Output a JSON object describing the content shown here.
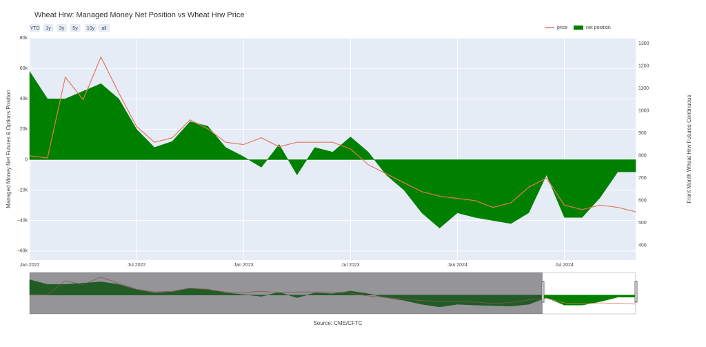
{
  "chart_data": {
    "type": "area-line",
    "title": "Wheat Hrw: Managed Money Net Position vs Wheat Hrw Price",
    "buttons": [
      "YTD",
      "1y",
      "3y",
      "5y",
      "10y",
      "all"
    ],
    "y_label": "Managed Money Net Futures & Options Position",
    "y2_label": "Front Month Wheat Hrw Futures Continuous",
    "source": "Source: CME/CFTC",
    "x": [
      "2022-01",
      "2022-02",
      "2022-03",
      "2022-04",
      "2022-05",
      "2022-06",
      "2022-07",
      "2022-08",
      "2022-09",
      "2022-10",
      "2022-11",
      "2022-12",
      "2023-01",
      "2023-02",
      "2023-03",
      "2023-04",
      "2023-05",
      "2023-06",
      "2023-07",
      "2023-08",
      "2023-09",
      "2023-10",
      "2023-11",
      "2023-12",
      "2024-01",
      "2024-02",
      "2024-03",
      "2024-04",
      "2024-05",
      "2024-06",
      "2024-07",
      "2024-08",
      "2024-09",
      "2024-10",
      "2024-11"
    ],
    "xlim": [
      "2022-01",
      "2024-11"
    ],
    "xticks": [
      {
        "value": "2022-01",
        "label": "Jan 2022"
      },
      {
        "value": "2022-07",
        "label": "Jul 2022"
      },
      {
        "value": "2023-01",
        "label": "Jan 2023"
      },
      {
        "value": "2023-07",
        "label": "Jul 2023"
      },
      {
        "value": "2024-01",
        "label": "Jan 2024"
      },
      {
        "value": "2024-07",
        "label": "Jul 2024"
      }
    ],
    "ylim": [
      -66000,
      80000
    ],
    "yticks": [
      {
        "value": -60000,
        "label": "−60k"
      },
      {
        "value": -40000,
        "label": "−40k"
      },
      {
        "value": -20000,
        "label": "−20k"
      },
      0,
      {
        "value": 20000,
        "label": "20k"
      },
      {
        "value": 40000,
        "label": "40k"
      },
      {
        "value": 60000,
        "label": "60k"
      },
      {
        "value": 80000,
        "label": "80k"
      }
    ],
    "y2lim": [
      335,
      1325
    ],
    "y2ticks": [
      400,
      500,
      600,
      700,
      800,
      900,
      1000,
      1100,
      1200,
      1300
    ],
    "grid": true,
    "legend": "top-right",
    "series": [
      {
        "name": "price",
        "color": "#e5765d",
        "axis": "y2",
        "kind": "line",
        "values": [
          800,
          790,
          1150,
          1050,
          1240,
          1080,
          930,
          860,
          880,
          960,
          920,
          860,
          850,
          880,
          840,
          860,
          860,
          860,
          830,
          760,
          720,
          680,
          640,
          620,
          610,
          600,
          570,
          590,
          660,
          700,
          580,
          560,
          580,
          570,
          550
        ]
      },
      {
        "name": "net position",
        "color": "#008000",
        "kind": "area",
        "values": [
          58000,
          40000,
          40000,
          45000,
          50000,
          40000,
          20000,
          8000,
          12000,
          25000,
          22000,
          8000,
          2000,
          -5000,
          10000,
          -10000,
          8000,
          5000,
          15000,
          5000,
          -10000,
          -20000,
          -35000,
          -45000,
          -35000,
          -38000,
          -40000,
          -42000,
          -35000,
          -10000,
          -38000,
          -38000,
          -25000,
          -8000,
          -8000
        ]
      }
    ]
  }
}
